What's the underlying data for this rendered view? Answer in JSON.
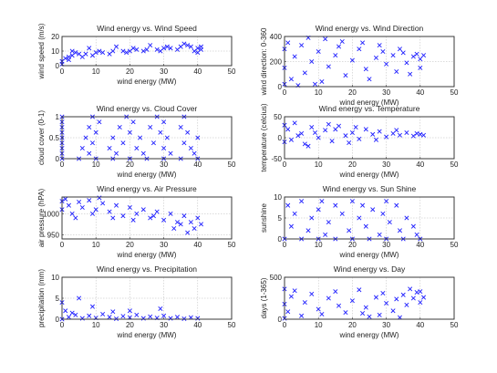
{
  "colors": {
    "marker": "#1f1fff",
    "axis": "#333333",
    "grid": "#b8b8b8",
    "text": "#222222"
  },
  "marker_symbol": "x",
  "chart_data": [
    {
      "type": "scatter",
      "title": "Wind energy vs. Wind Speed",
      "xlabel": "wind energy (MW)",
      "ylabel": "wind speed (m/s)",
      "xlim": [
        0,
        50
      ],
      "ylim": [
        0,
        20
      ],
      "xticks": [
        0,
        10,
        20,
        30,
        40,
        50
      ],
      "yticks": [
        0,
        10,
        20
      ],
      "grid": true,
      "points": [
        [
          0,
          1
        ],
        [
          0,
          3
        ],
        [
          1,
          5
        ],
        [
          2,
          6
        ],
        [
          3,
          7
        ],
        [
          5,
          8
        ],
        [
          7,
          8
        ],
        [
          10,
          9
        ],
        [
          12,
          9
        ],
        [
          15,
          10
        ],
        [
          18,
          10
        ],
        [
          20,
          10
        ],
        [
          22,
          11
        ],
        [
          25,
          11
        ],
        [
          28,
          11
        ],
        [
          30,
          12
        ],
        [
          32,
          12
        ],
        [
          35,
          13
        ],
        [
          37,
          14
        ],
        [
          38,
          13
        ],
        [
          40,
          12
        ],
        [
          41,
          11
        ],
        [
          2,
          4
        ],
        [
          6,
          6
        ],
        [
          9,
          7
        ],
        [
          14,
          8
        ],
        [
          19,
          9
        ],
        [
          24,
          10
        ],
        [
          29,
          10
        ],
        [
          34,
          11
        ],
        [
          39,
          10
        ],
        [
          40,
          9
        ],
        [
          3,
          10
        ],
        [
          8,
          12
        ],
        [
          16,
          13
        ],
        [
          26,
          14
        ],
        [
          36,
          15
        ],
        [
          4,
          9
        ],
        [
          11,
          10
        ],
        [
          21,
          12
        ],
        [
          31,
          13
        ],
        [
          41,
          13
        ]
      ]
    },
    {
      "type": "scatter",
      "title": "Wind energy vs. Wind Direction",
      "xlabel": "wind energy (MW)",
      "ylabel": "wind direction: 0-360",
      "xlim": [
        0,
        50
      ],
      "ylim": [
        0,
        400
      ],
      "xticks": [
        0,
        10,
        20,
        30,
        40,
        50
      ],
      "yticks": [
        0,
        200,
        400
      ],
      "grid": true,
      "points": [
        [
          0,
          20
        ],
        [
          0,
          150
        ],
        [
          0,
          300
        ],
        [
          1,
          350
        ],
        [
          2,
          60
        ],
        [
          3,
          240
        ],
        [
          5,
          330
        ],
        [
          6,
          110
        ],
        [
          8,
          200
        ],
        [
          10,
          280
        ],
        [
          11,
          40
        ],
        [
          13,
          160
        ],
        [
          15,
          250
        ],
        [
          16,
          320
        ],
        [
          18,
          90
        ],
        [
          20,
          210
        ],
        [
          22,
          300
        ],
        [
          24,
          140
        ],
        [
          25,
          60
        ],
        [
          27,
          230
        ],
        [
          29,
          280
        ],
        [
          30,
          180
        ],
        [
          32,
          250
        ],
        [
          33,
          120
        ],
        [
          35,
          270
        ],
        [
          36,
          190
        ],
        [
          38,
          240
        ],
        [
          39,
          260
        ],
        [
          40,
          220
        ],
        [
          41,
          250
        ],
        [
          40,
          150
        ],
        [
          37,
          100
        ],
        [
          34,
          300
        ],
        [
          28,
          330
        ],
        [
          23,
          350
        ],
        [
          17,
          360
        ],
        [
          12,
          380
        ],
        [
          7,
          390
        ],
        [
          4,
          10
        ],
        [
          9,
          20
        ]
      ]
    },
    {
      "type": "scatter",
      "title": "Wind energy vs. Cloud Cover",
      "xlabel": "wind energy (MW)",
      "ylabel": "cloud cover (0-1)",
      "xlim": [
        0,
        50
      ],
      "ylim": [
        0,
        1
      ],
      "xticks": [
        0,
        10,
        20,
        30,
        40,
        50
      ],
      "yticks": [
        0,
        0.5,
        1
      ],
      "grid": true,
      "points": [
        [
          0,
          0
        ],
        [
          5,
          0
        ],
        [
          10,
          0
        ],
        [
          15,
          0
        ],
        [
          20,
          0
        ],
        [
          25,
          0
        ],
        [
          30,
          0
        ],
        [
          35,
          0
        ],
        [
          40,
          0
        ],
        [
          0,
          0.125
        ],
        [
          8,
          0.125
        ],
        [
          16,
          0.125
        ],
        [
          24,
          0.125
        ],
        [
          32,
          0.125
        ],
        [
          39,
          0.125
        ],
        [
          0,
          0.25
        ],
        [
          6,
          0.25
        ],
        [
          14,
          0.25
        ],
        [
          22,
          0.25
        ],
        [
          30,
          0.25
        ],
        [
          38,
          0.25
        ],
        [
          0,
          0.375
        ],
        [
          9,
          0.375
        ],
        [
          18,
          0.375
        ],
        [
          27,
          0.375
        ],
        [
          36,
          0.375
        ],
        [
          0,
          0.5
        ],
        [
          7,
          0.5
        ],
        [
          15,
          0.5
        ],
        [
          23,
          0.5
        ],
        [
          31,
          0.5
        ],
        [
          40,
          0.5
        ],
        [
          0,
          0.625
        ],
        [
          10,
          0.625
        ],
        [
          20,
          0.625
        ],
        [
          29,
          0.625
        ],
        [
          37,
          0.625
        ],
        [
          0,
          0.75
        ],
        [
          8,
          0.75
        ],
        [
          17,
          0.75
        ],
        [
          26,
          0.75
        ],
        [
          35,
          0.75
        ],
        [
          0,
          0.875
        ],
        [
          11,
          0.875
        ],
        [
          21,
          0.875
        ],
        [
          30,
          0.875
        ],
        [
          0,
          1
        ],
        [
          9,
          1
        ],
        [
          19,
          1
        ],
        [
          28,
          1
        ],
        [
          36,
          1
        ]
      ]
    },
    {
      "type": "scatter",
      "title": "Wind energy vs. Temperature",
      "xlabel": "wind energy (MW)",
      "ylabel": "temperature (celcius)",
      "xlim": [
        0,
        50
      ],
      "ylim": [
        -50,
        50
      ],
      "xticks": [
        0,
        10,
        20,
        30,
        40,
        50
      ],
      "yticks": [
        -50,
        0,
        50
      ],
      "grid": true,
      "points": [
        [
          0,
          -10
        ],
        [
          0,
          30
        ],
        [
          1,
          20
        ],
        [
          2,
          -5
        ],
        [
          3,
          35
        ],
        [
          5,
          10
        ],
        [
          6,
          -15
        ],
        [
          8,
          25
        ],
        [
          10,
          0
        ],
        [
          12,
          18
        ],
        [
          14,
          -8
        ],
        [
          16,
          28
        ],
        [
          18,
          5
        ],
        [
          20,
          12
        ],
        [
          22,
          -3
        ],
        [
          24,
          20
        ],
        [
          26,
          8
        ],
        [
          28,
          15
        ],
        [
          30,
          2
        ],
        [
          32,
          10
        ],
        [
          34,
          6
        ],
        [
          36,
          12
        ],
        [
          38,
          4
        ],
        [
          40,
          8
        ],
        [
          41,
          6
        ],
        [
          4,
          5
        ],
        [
          9,
          12
        ],
        [
          15,
          20
        ],
        [
          21,
          25
        ],
        [
          27,
          -5
        ],
        [
          33,
          18
        ],
        [
          39,
          10
        ],
        [
          7,
          -20
        ],
        [
          13,
          32
        ],
        [
          19,
          -12
        ]
      ]
    },
    {
      "type": "scatter",
      "title": "Wind energy vs. Air Pressure",
      "xlabel": "wind energy (MW)",
      "ylabel": "air pressure (hPA)",
      "xlim": [
        0,
        50
      ],
      "ylim": [
        940,
        1040
      ],
      "xticks": [
        0,
        10,
        20,
        30,
        40,
        50
      ],
      "yticks": [
        950,
        1000
      ],
      "grid": true,
      "points": [
        [
          0,
          1030
        ],
        [
          0,
          1010
        ],
        [
          1,
          1035
        ],
        [
          2,
          1020
        ],
        [
          3,
          1000
        ],
        [
          5,
          1028
        ],
        [
          6,
          1015
        ],
        [
          8,
          1032
        ],
        [
          10,
          1010
        ],
        [
          12,
          1025
        ],
        [
          14,
          1005
        ],
        [
          16,
          1020
        ],
        [
          18,
          995
        ],
        [
          20,
          1015
        ],
        [
          22,
          1000
        ],
        [
          24,
          1010
        ],
        [
          26,
          990
        ],
        [
          28,
          1005
        ],
        [
          30,
          985
        ],
        [
          32,
          1000
        ],
        [
          34,
          980
        ],
        [
          35,
          975
        ],
        [
          36,
          995
        ],
        [
          38,
          980
        ],
        [
          39,
          965
        ],
        [
          40,
          990
        ],
        [
          41,
          975
        ],
        [
          4,
          990
        ],
        [
          9,
          1000
        ],
        [
          15,
          990
        ],
        [
          21,
          985
        ],
        [
          27,
          995
        ],
        [
          33,
          965
        ],
        [
          37,
          955
        ],
        [
          11,
          1038
        ]
      ]
    },
    {
      "type": "scatter",
      "title": "Wind energy vs. Sun Shine",
      "xlabel": "wind energy (MW)",
      "ylabel": "sunshine",
      "xlim": [
        0,
        50
      ],
      "ylim": [
        0,
        10
      ],
      "xticks": [
        0,
        10,
        20,
        30,
        40,
        50
      ],
      "yticks": [
        0,
        5,
        10
      ],
      "grid": true,
      "points": [
        [
          0,
          0
        ],
        [
          5,
          0
        ],
        [
          10,
          0
        ],
        [
          15,
          0
        ],
        [
          20,
          0
        ],
        [
          25,
          0
        ],
        [
          30,
          0
        ],
        [
          35,
          0
        ],
        [
          40,
          0
        ],
        [
          1,
          8
        ],
        [
          2,
          3
        ],
        [
          3,
          6
        ],
        [
          5,
          9
        ],
        [
          7,
          2
        ],
        [
          8,
          5
        ],
        [
          10,
          7
        ],
        [
          12,
          1
        ],
        [
          13,
          4
        ],
        [
          15,
          8
        ],
        [
          17,
          6
        ],
        [
          19,
          2
        ],
        [
          20,
          9
        ],
        [
          22,
          5
        ],
        [
          24,
          3
        ],
        [
          26,
          7
        ],
        [
          28,
          1
        ],
        [
          29,
          6
        ],
        [
          31,
          4
        ],
        [
          33,
          8
        ],
        [
          34,
          2
        ],
        [
          36,
          5
        ],
        [
          38,
          3
        ],
        [
          39,
          1
        ],
        [
          11,
          9
        ],
        [
          23,
          8
        ],
        [
          30,
          9
        ]
      ]
    },
    {
      "type": "scatter",
      "title": "Wind energy vs. Precipitation",
      "xlabel": "wind energy (MW)",
      "ylabel": "precipitation (mm)",
      "xlim": [
        0,
        50
      ],
      "ylim": [
        0,
        10
      ],
      "xticks": [
        0,
        10,
        20,
        30,
        40,
        50
      ],
      "yticks": [
        0,
        5,
        10
      ],
      "grid": true,
      "points": [
        [
          0,
          0
        ],
        [
          2,
          0.5
        ],
        [
          4,
          1
        ],
        [
          6,
          0.2
        ],
        [
          8,
          0.8
        ],
        [
          10,
          0.3
        ],
        [
          12,
          1.2
        ],
        [
          14,
          0.5
        ],
        [
          16,
          0.1
        ],
        [
          18,
          0.7
        ],
        [
          20,
          0.4
        ],
        [
          22,
          1
        ],
        [
          24,
          0.2
        ],
        [
          26,
          0.6
        ],
        [
          28,
          0.3
        ],
        [
          30,
          0.8
        ],
        [
          32,
          0.2
        ],
        [
          34,
          0.5
        ],
        [
          36,
          0.1
        ],
        [
          38,
          0.4
        ],
        [
          40,
          0.2
        ],
        [
          5,
          5
        ],
        [
          0,
          4
        ],
        [
          1,
          2
        ],
        [
          9,
          3
        ],
        [
          20,
          2
        ],
        [
          29,
          2.5
        ],
        [
          3,
          1.5
        ],
        [
          15,
          1.8
        ]
      ]
    },
    {
      "type": "scatter",
      "title": "Wind energy vs. Day",
      "xlabel": "wind energy (MW)",
      "ylabel": "days (1-365)",
      "xlim": [
        0,
        50
      ],
      "ylim": [
        0,
        500
      ],
      "xticks": [
        0,
        10,
        20,
        30,
        40,
        50
      ],
      "yticks": [
        0,
        500
      ],
      "grid": true,
      "points": [
        [
          0,
          10
        ],
        [
          0,
          180
        ],
        [
          0,
          360
        ],
        [
          1,
          90
        ],
        [
          2,
          270
        ],
        [
          3,
          340
        ],
        [
          5,
          40
        ],
        [
          6,
          200
        ],
        [
          8,
          300
        ],
        [
          10,
          120
        ],
        [
          11,
          60
        ],
        [
          13,
          250
        ],
        [
          15,
          330
        ],
        [
          16,
          160
        ],
        [
          18,
          80
        ],
        [
          20,
          220
        ],
        [
          22,
          350
        ],
        [
          24,
          140
        ],
        [
          25,
          30
        ],
        [
          27,
          260
        ],
        [
          29,
          310
        ],
        [
          30,
          190
        ],
        [
          32,
          100
        ],
        [
          33,
          240
        ],
        [
          35,
          290
        ],
        [
          36,
          170
        ],
        [
          38,
          250
        ],
        [
          39,
          320
        ],
        [
          40,
          200
        ],
        [
          41,
          260
        ],
        [
          40,
          330
        ],
        [
          37,
          360
        ],
        [
          34,
          20
        ],
        [
          28,
          50
        ],
        [
          23,
          70
        ]
      ]
    }
  ]
}
